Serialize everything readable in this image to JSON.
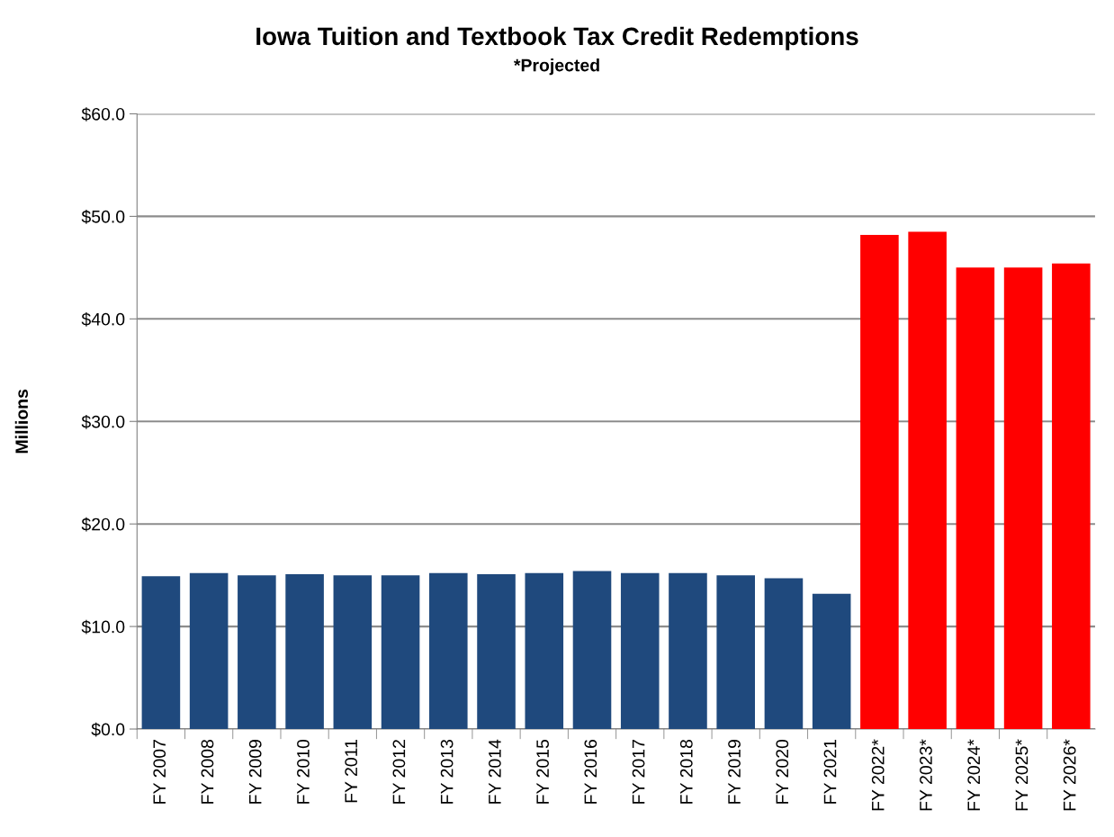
{
  "chart_data": {
    "type": "bar",
    "title": "Iowa Tuition and Textbook Tax Credit Redemptions",
    "subtitle": "*Projected",
    "ylabel": "Millions",
    "categories": [
      "FY 2007",
      "FY 2008",
      "FY 2009",
      "FY 2010",
      "FY 2011",
      "FY 2012",
      "FY 2013",
      "FY 2014",
      "FY 2015",
      "FY 2016",
      "FY 2017",
      "FY 2018",
      "FY 2019",
      "FY 2020",
      "FY 2021",
      "FY 2022*",
      "FY 2023*",
      "FY 2024*",
      "FY 2025*",
      "FY 2026*"
    ],
    "values": [
      14.9,
      15.2,
      15.0,
      15.1,
      15.0,
      15.0,
      15.2,
      15.1,
      15.2,
      15.4,
      15.2,
      15.2,
      15.0,
      14.7,
      13.2,
      48.2,
      48.5,
      45.0,
      45.0,
      45.4
    ],
    "colors": [
      "#1f497d",
      "#1f497d",
      "#1f497d",
      "#1f497d",
      "#1f497d",
      "#1f497d",
      "#1f497d",
      "#1f497d",
      "#1f497d",
      "#1f497d",
      "#1f497d",
      "#1f497d",
      "#1f497d",
      "#1f497d",
      "#1f497d",
      "#ff0000",
      "#ff0000",
      "#ff0000",
      "#ff0000",
      "#ff0000"
    ],
    "ylim": [
      0,
      60
    ],
    "yticks": [
      {
        "value": 0,
        "label": "$0.0"
      },
      {
        "value": 10,
        "label": "$10.0"
      },
      {
        "value": 20,
        "label": "$20.0"
      },
      {
        "value": 30,
        "label": "$30.0"
      },
      {
        "value": 40,
        "label": "$40.0"
      },
      {
        "value": 50,
        "label": "$50.0"
      },
      {
        "value": 60,
        "label": "$60.0"
      }
    ],
    "grid": "y",
    "legend": false
  }
}
